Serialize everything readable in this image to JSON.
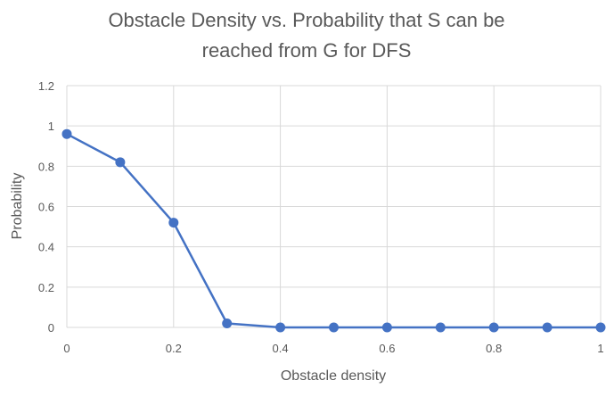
{
  "chart_data": {
    "type": "scatter",
    "title_lines": [
      "Obstacle Density vs. Probability that S can be",
      "reached from G for DFS"
    ],
    "xlabel": "Obstacle density",
    "ylabel": "Probability",
    "xlim": [
      0,
      1
    ],
    "ylim": [
      0,
      1.2
    ],
    "x_ticks": [
      "0",
      "0.2",
      "0.4",
      "0.6",
      "0.8",
      "1"
    ],
    "y_ticks": [
      "0",
      "0.2",
      "0.4",
      "0.6",
      "0.8",
      "1",
      "1.2"
    ],
    "grid": "vertical-and-horizontal",
    "legend": "none",
    "series": [
      {
        "color": "#4472c4",
        "x": [
          0,
          0.1,
          0.2,
          0.3,
          0.4,
          0.5,
          0.6,
          0.7,
          0.8,
          0.9,
          1.0
        ],
        "y": [
          0.96,
          0.82,
          0.52,
          0.02,
          0,
          0,
          0,
          0,
          0,
          0,
          0
        ]
      }
    ]
  }
}
